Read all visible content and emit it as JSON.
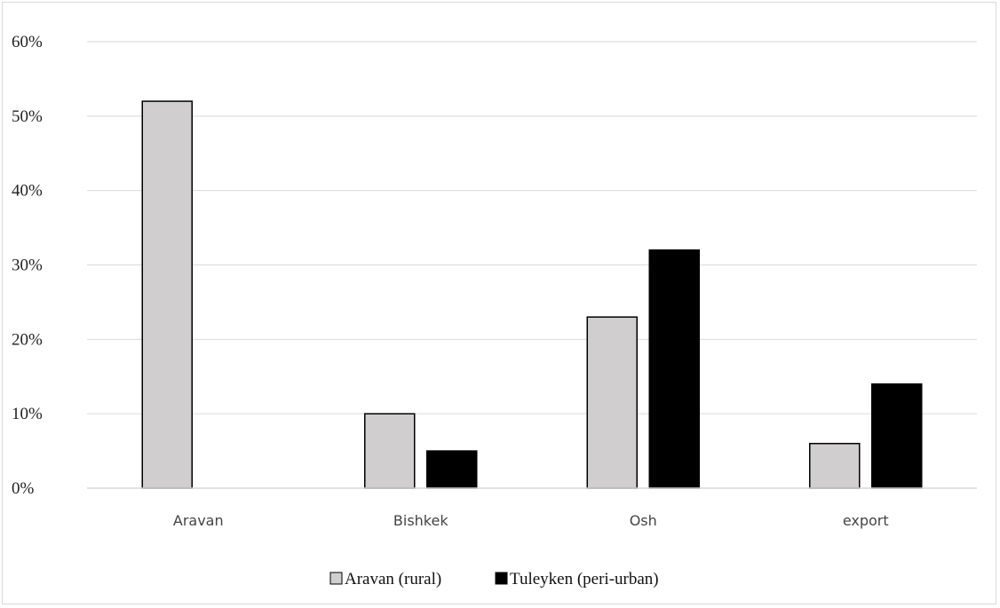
{
  "chart_data": {
    "type": "bar",
    "categories": [
      "Aravan",
      "Bishkek",
      "Osh",
      "export"
    ],
    "series": [
      {
        "name": "Aravan (rural)",
        "values": [
          52,
          10,
          23,
          6
        ],
        "color": "#d0cece"
      },
      {
        "name": "Tuleyken (peri-urban)",
        "values": [
          0,
          5,
          32,
          14
        ],
        "color": "#000000"
      }
    ],
    "ylim": [
      0,
      60
    ],
    "yticks": [
      "0%",
      "10%",
      "20%",
      "30%",
      "40%",
      "50%",
      "60%"
    ],
    "ytick_values": [
      0,
      10,
      20,
      30,
      40,
      50,
      60
    ],
    "grid": true,
    "legend_position": "bottom",
    "gridline_color": "#d9d9d9",
    "bar_outline_color": "#000000"
  }
}
